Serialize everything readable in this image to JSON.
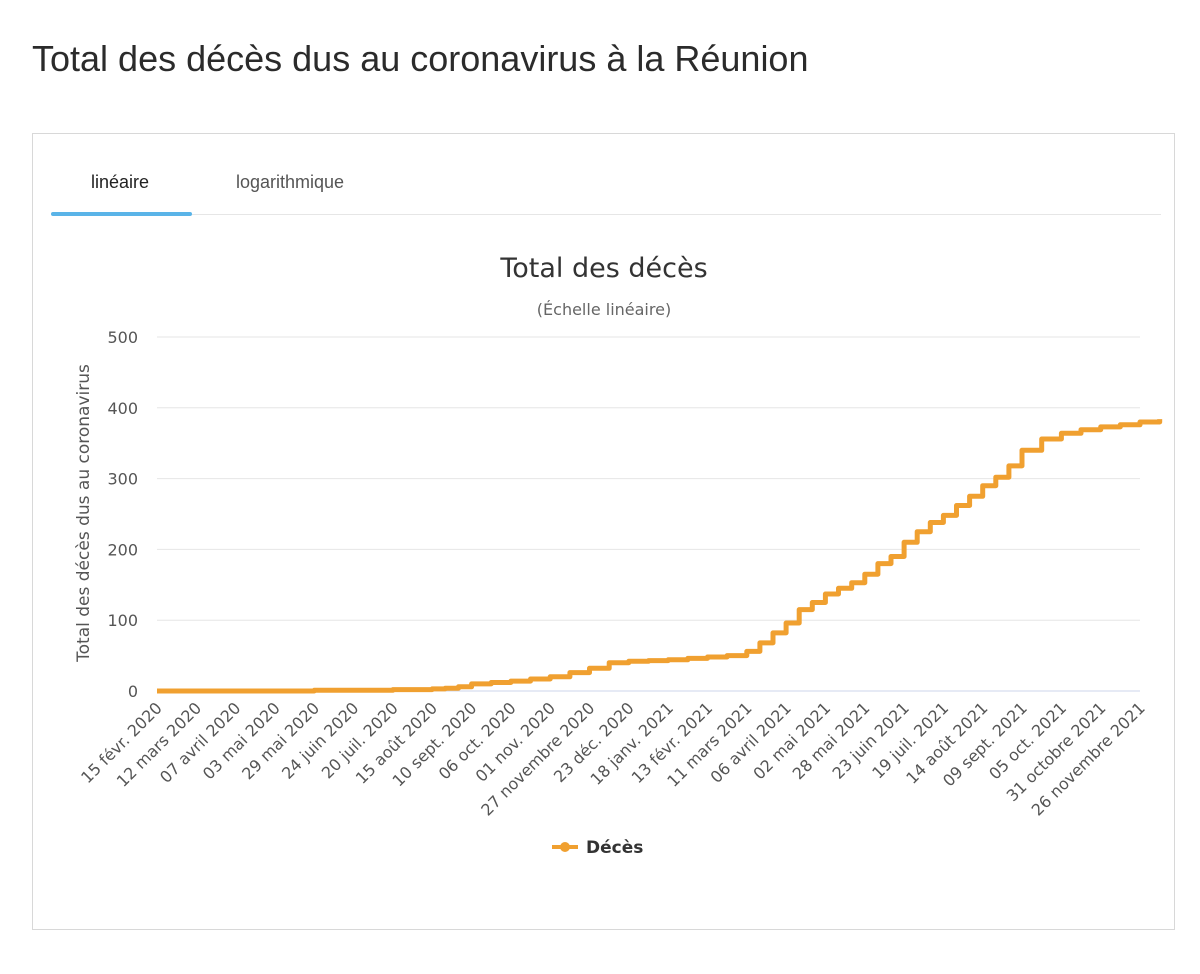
{
  "page": {
    "title": "Total des décès dus au coronavirus à la Réunion"
  },
  "tabs": [
    {
      "label": "linéaire",
      "active": true
    },
    {
      "label": "logarithmique",
      "active": false
    }
  ],
  "colors": {
    "series": "#f0a030",
    "tab_underline": "#5ab4e8"
  },
  "chart_data": {
    "type": "line",
    "title": "Total des décès",
    "subtitle": "(Échelle linéaire)",
    "xlabel": "",
    "ylabel": "Total des décès dus au coronavirus",
    "ylim": [
      0,
      500
    ],
    "yticks": [
      0,
      100,
      200,
      300,
      400,
      500
    ],
    "grid": true,
    "legend_position": "bottom",
    "x_ticks": [
      "15 févr. 2020",
      "12 mars 2020",
      "07 avril 2020",
      "03 mai 2020",
      "29 mai 2020",
      "24 juin 2020",
      "20 juil. 2020",
      "15 août 2020",
      "10 sept. 2020",
      "06 oct. 2020",
      "01 nov. 2020",
      "27 novembre 2020",
      "23 déc. 2020",
      "18 janv. 2021",
      "13 févr. 2021",
      "11 mars 2021",
      "06 avril 2021",
      "02 mai 2021",
      "28 mai 2021",
      "23 juin 2021",
      "19 juil. 2021",
      "14 août 2021",
      "09 sept. 2021",
      "05 oct. 2021",
      "31 octobre 2021",
      "26 novembre 2021"
    ],
    "series": [
      {
        "name": "Décès",
        "x": [
          "15 févr. 2020",
          "12 mars 2020",
          "07 avril 2020",
          "03 mai 2020",
          "29 mai 2020",
          "24 juin 2020",
          "20 juil. 2020",
          "15 août 2020",
          "25 août 2020",
          "01 sept. 2020",
          "10 sept. 2020",
          "25 sept. 2020",
          "06 oct. 2020",
          "20 oct. 2020",
          "01 nov. 2020",
          "15 nov. 2020",
          "27 novembre 2020",
          "10 déc. 2020",
          "23 déc. 2020",
          "05 janv. 2021",
          "18 janv. 2021",
          "01 févr. 2021",
          "13 févr. 2021",
          "25 févr. 2021",
          "11 mars 2021",
          "20 mars 2021",
          "28 mars 2021",
          "06 avril 2021",
          "14 avril 2021",
          "22 avril 2021",
          "02 mai 2021",
          "10 mai 2021",
          "18 mai 2021",
          "28 mai 2021",
          "05 juin 2021",
          "12 juin 2021",
          "23 juin 2021",
          "01 juil. 2021",
          "10 juil. 2021",
          "19 juil. 2021",
          "27 juil. 2021",
          "05 août 2021",
          "14 août 2021",
          "22 août 2021",
          "01 sept. 2021",
          "09 sept. 2021",
          "20 sept. 2021",
          "05 oct. 2021",
          "20 oct. 2021",
          "31 octobre 2021",
          "15 nov. 2021",
          "26 novembre 2021",
          "05 déc. 2021"
        ],
        "values": [
          0,
          0,
          0,
          0,
          1,
          1,
          2,
          3,
          4,
          6,
          10,
          12,
          14,
          17,
          20,
          26,
          32,
          40,
          42,
          43,
          44,
          46,
          48,
          50,
          56,
          68,
          82,
          96,
          115,
          125,
          137,
          145,
          153,
          165,
          180,
          190,
          210,
          225,
          238,
          248,
          262,
          275,
          290,
          302,
          318,
          340,
          356,
          364,
          369,
          373,
          376,
          380,
          384
        ]
      }
    ]
  }
}
